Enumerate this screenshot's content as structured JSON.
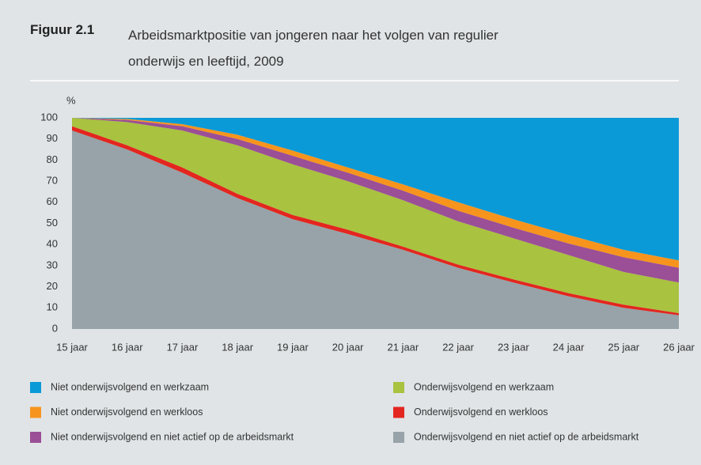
{
  "chart_data": {
    "type": "stacked_area",
    "figure_label": "Figuur 2.1",
    "title": "Arbeidsmarktpositie van jongeren naar het volgen van regulier onderwijs en leeftijd, 2009",
    "y_label": "%",
    "categories": [
      "15 jaar",
      "16 jaar",
      "17 jaar",
      "18 jaar",
      "19 jaar",
      "20 jaar",
      "21 jaar",
      "22 jaar",
      "23 jaar",
      "24 jaar",
      "25 jaar",
      "26 jaar"
    ],
    "series": [
      {
        "name": "Onderwijsvolgend en niet actief op de arbeidsmarkt",
        "color": "#97a3a8",
        "values": [
          94,
          85,
          74,
          62,
          52,
          45,
          37.5,
          29,
          22,
          15.5,
          10,
          6.5
        ]
      },
      {
        "name": "Onderwijsvolgend en werkloos",
        "color": "#e3261f",
        "values": [
          2,
          2,
          2.5,
          2,
          2,
          2,
          1.5,
          1.5,
          1.5,
          1.5,
          1.5,
          1
        ]
      },
      {
        "name": "Onderwijsvolgend en werkzaam",
        "color": "#a9c23f",
        "values": [
          4,
          11,
          17.5,
          23,
          24,
          23,
          22,
          20.5,
          19.5,
          18,
          15.5,
          14.5
        ]
      },
      {
        "name": "Niet onderwijsvolgend en niet actief op de arbeidsmarkt",
        "color": "#9b4f96",
        "values": [
          0,
          1,
          2,
          3,
          4,
          4,
          4.5,
          5,
          5,
          5.5,
          7,
          7
        ]
      },
      {
        "name": "Niet onderwijsvolgend en werkloos",
        "color": "#f7941d",
        "values": [
          0,
          0.5,
          1,
          2,
          2.5,
          2.5,
          3,
          4,
          4,
          4,
          3.5,
          3.5
        ]
      },
      {
        "name": "Niet onderwijsvolgend en werkzaam",
        "color": "#0a9ad7",
        "values": [
          0,
          0.5,
          3,
          8,
          15.5,
          23.5,
          31.5,
          40,
          48,
          55.5,
          62.5,
          67.5
        ]
      }
    ],
    "ylim": [
      0,
      100
    ],
    "yticks": [
      0,
      10,
      20,
      30,
      40,
      50,
      60,
      70,
      80,
      90,
      100
    ],
    "grid": false
  }
}
